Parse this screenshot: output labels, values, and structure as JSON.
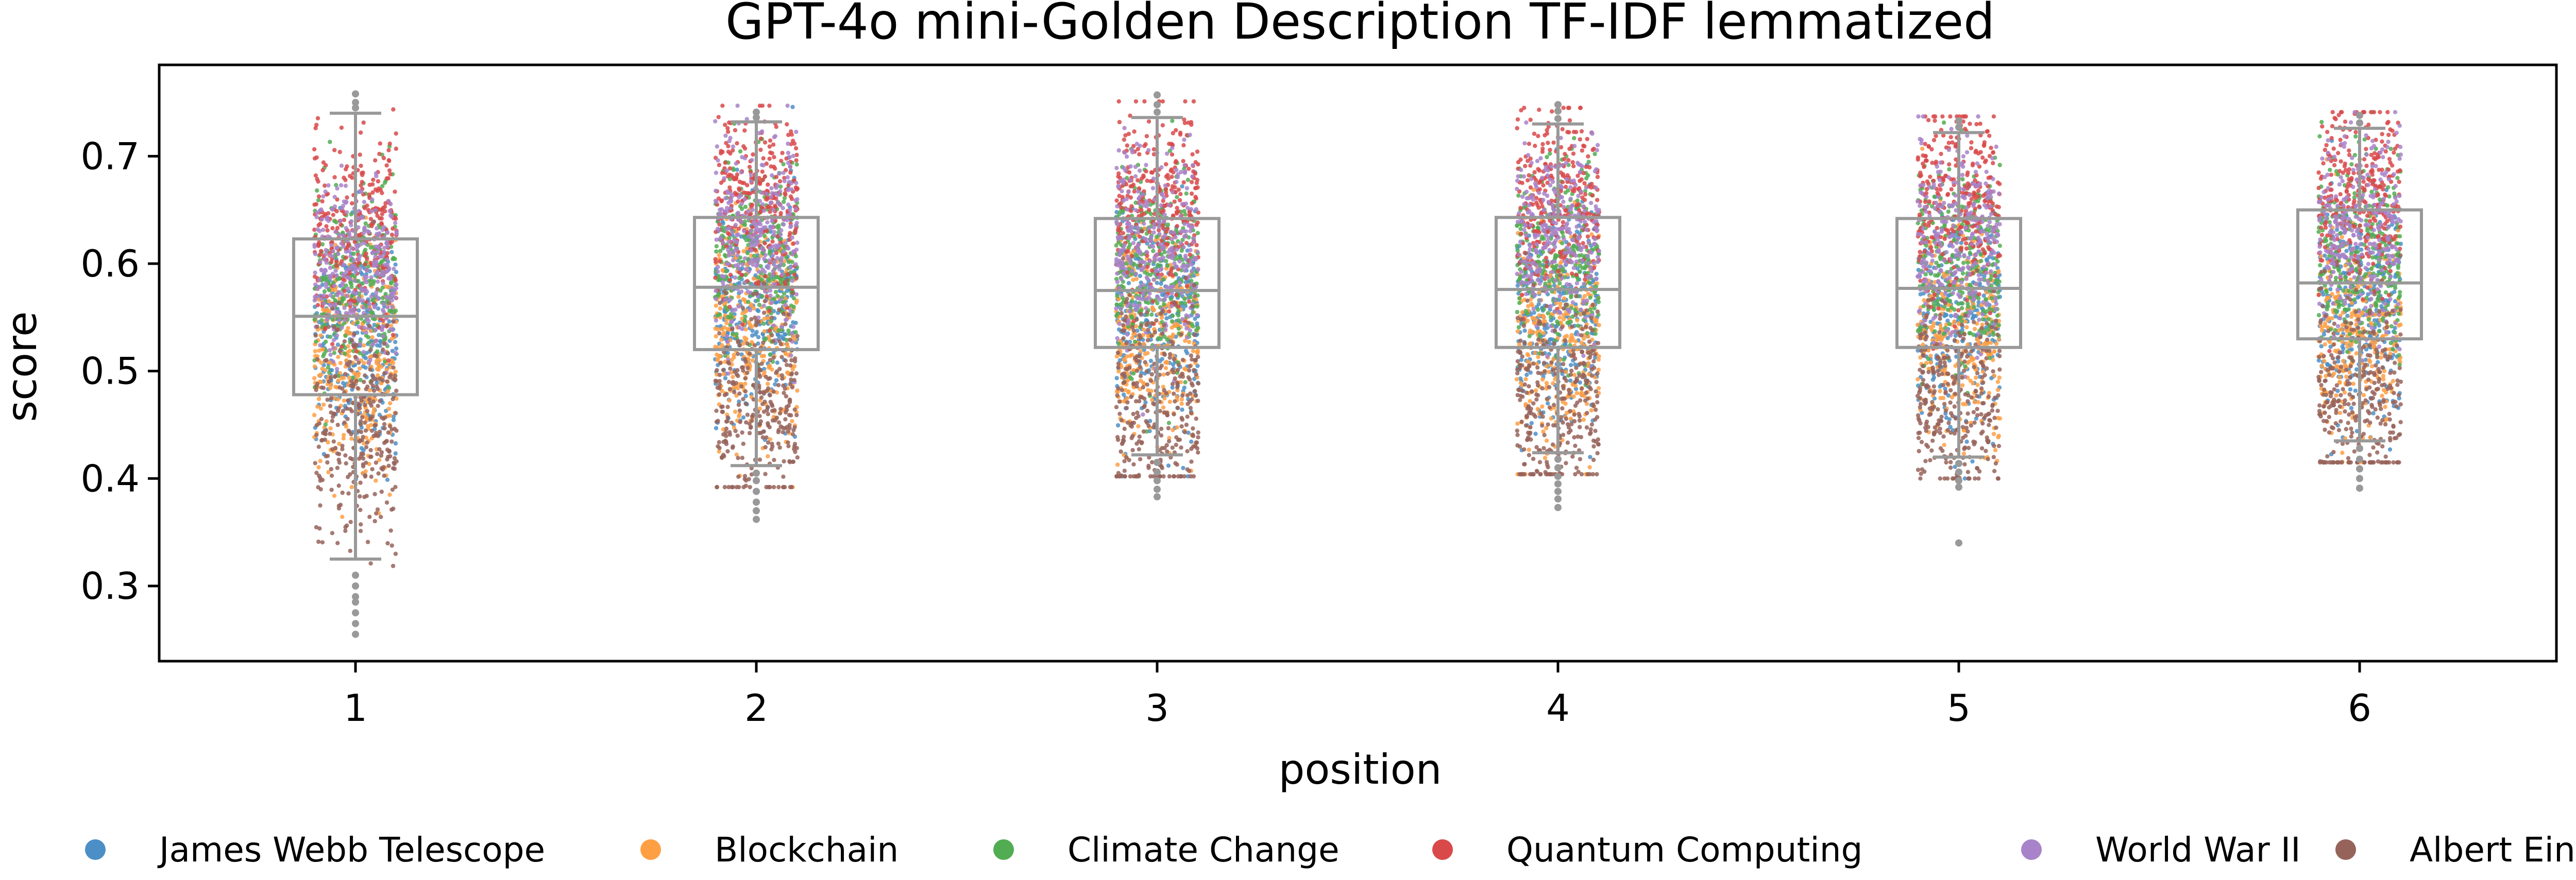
{
  "chart_data": {
    "type": "box-strip",
    "title": "GPT-4o mini-Golden Description TF-IDF lemmatized",
    "xlabel": "position",
    "ylabel": "score",
    "categories": [
      "1",
      "2",
      "3",
      "4",
      "5",
      "6"
    ],
    "ylim": [
      0.23,
      0.785
    ],
    "yticks": [
      0.3,
      0.4,
      0.5,
      0.6,
      0.7
    ],
    "ytick_labels": [
      "0.3",
      "0.4",
      "0.5",
      "0.6",
      "0.7"
    ],
    "grid": false,
    "legend_position": "bottom",
    "box_color": "#999999",
    "boxes": [
      {
        "position": "1",
        "whisker_low": 0.325,
        "q1": 0.478,
        "median": 0.551,
        "q3": 0.623,
        "whisker_high": 0.74,
        "outliers": [
          0.31,
          0.3,
          0.29,
          0.285,
          0.275,
          0.265,
          0.255,
          0.745,
          0.75,
          0.758
        ]
      },
      {
        "position": "2",
        "whisker_low": 0.412,
        "q1": 0.52,
        "median": 0.578,
        "q3": 0.643,
        "whisker_high": 0.732,
        "outliers": [
          0.405,
          0.398,
          0.388,
          0.378,
          0.37,
          0.362,
          0.736,
          0.741
        ]
      },
      {
        "position": "3",
        "whisker_low": 0.422,
        "q1": 0.522,
        "median": 0.575,
        "q3": 0.642,
        "whisker_high": 0.736,
        "outliers": [
          0.415,
          0.406,
          0.398,
          0.39,
          0.383,
          0.741,
          0.748,
          0.757
        ]
      },
      {
        "position": "4",
        "whisker_low": 0.424,
        "q1": 0.522,
        "median": 0.576,
        "q3": 0.643,
        "whisker_high": 0.73,
        "outliers": [
          0.418,
          0.41,
          0.402,
          0.395,
          0.388,
          0.381,
          0.373,
          0.735,
          0.742,
          0.748
        ]
      },
      {
        "position": "5",
        "whisker_low": 0.42,
        "q1": 0.522,
        "median": 0.577,
        "q3": 0.642,
        "whisker_high": 0.722,
        "outliers": [
          0.414,
          0.406,
          0.398,
          0.392,
          0.34,
          0.727,
          0.733
        ]
      },
      {
        "position": "6",
        "whisker_low": 0.435,
        "q1": 0.53,
        "median": 0.582,
        "q3": 0.65,
        "whisker_high": 0.726,
        "outliers": [
          0.428,
          0.418,
          0.409,
          0.4,
          0.391,
          0.731,
          0.738
        ]
      }
    ],
    "series": [
      {
        "name": "James Webb Telescope",
        "color": "#4c8fc7",
        "mean": 0.555,
        "spread": 0.05
      },
      {
        "name": "Blockchain",
        "color": "#ff9f44",
        "mean": 0.535,
        "spread": 0.05
      },
      {
        "name": "Climate Change",
        "color": "#52ad52",
        "mean": 0.605,
        "spread": 0.045
      },
      {
        "name": "Quantum Computing",
        "color": "#d9494a",
        "mean": 0.66,
        "spread": 0.045
      },
      {
        "name": "World War II",
        "color": "#a883c9",
        "mean": 0.625,
        "spread": 0.045
      },
      {
        "name": "Albert Einstein",
        "color": "#96635b",
        "mean": 0.47,
        "spread": 0.05
      }
    ]
  }
}
